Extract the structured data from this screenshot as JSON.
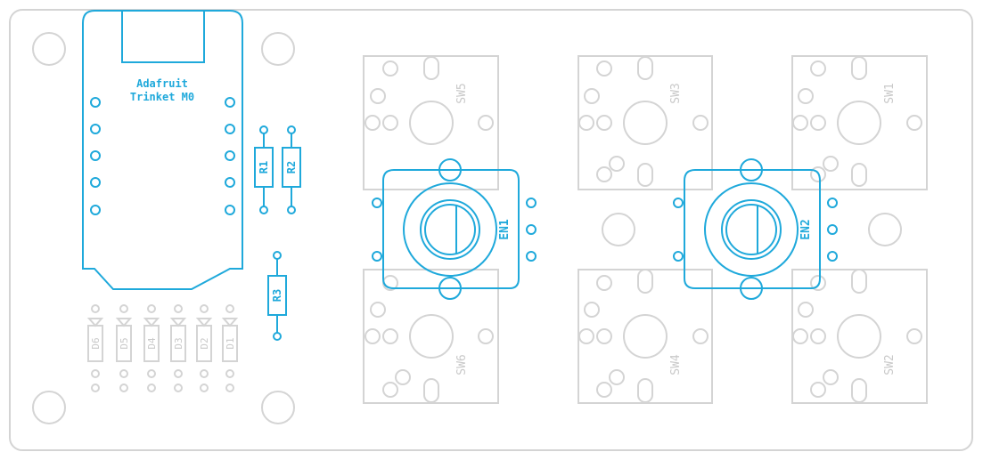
{
  "board": {
    "module_label_line1": "Adafruit",
    "module_label_line2": "Trinket M0",
    "resistors": [
      "R1",
      "R2",
      "R3"
    ],
    "diodes": [
      "D6",
      "D5",
      "D4",
      "D3",
      "D2",
      "D1"
    ],
    "switches": [
      "SW5",
      "SW3",
      "SW1",
      "SW6",
      "SW4",
      "SW2"
    ],
    "encoders": [
      "EN1",
      "EN2"
    ]
  },
  "colors": {
    "outline": "#d4d4d4",
    "accent": "#1fa9db",
    "background": "#ffffff"
  }
}
